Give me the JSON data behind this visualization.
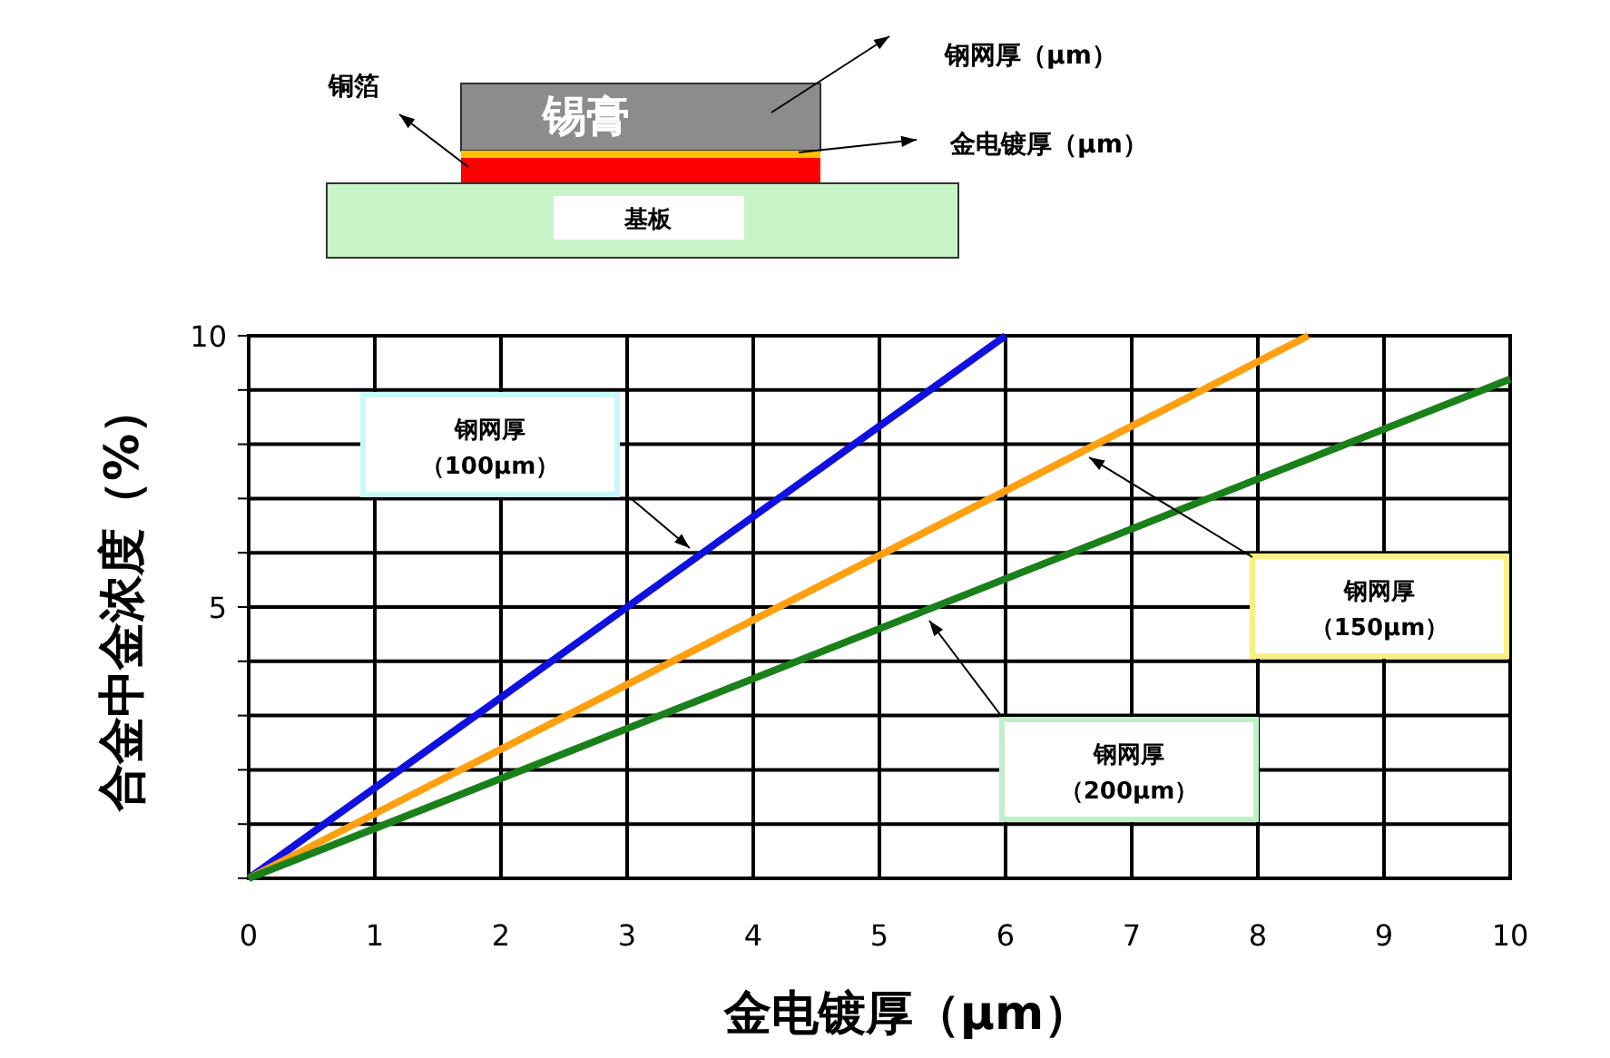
{
  "chart_data": {
    "type": "line",
    "xlabel": "金电镀厚（μm）",
    "ylabel": "合金中金浓度（%）",
    "series": [
      {
        "color": "#1010e0",
        "x": [
          0,
          6
        ],
        "values": [
          0,
          10
        ]
      },
      {
        "color": "#ffa010",
        "x": [
          0,
          8.4
        ],
        "values": [
          0,
          10
        ]
      },
      {
        "color": "#1a801a",
        "x": [
          0,
          10
        ],
        "values": [
          0,
          9.2
        ]
      }
    ],
    "xlim": [
      0,
      10
    ],
    "xticks": [
      0,
      1,
      2,
      3,
      4,
      5,
      6,
      7,
      8,
      9,
      10
    ],
    "ylim": [
      0,
      10
    ],
    "yticks": [
      {
        "value": 0,
        "label": null
      },
      {
        "value": 1,
        "label": null
      },
      {
        "value": 2,
        "label": null
      },
      {
        "value": 3,
        "label": null
      },
      {
        "value": 4,
        "label": null
      },
      5,
      {
        "value": 6,
        "label": null
      },
      {
        "value": 7,
        "label": null
      },
      {
        "value": 8,
        "label": null
      },
      {
        "value": 9,
        "label": null
      },
      10
    ],
    "grid": true,
    "marker": "none",
    "line_style": "solid",
    "annotations": [
      "钢网厚（100μm）",
      "钢网厚（150μm）",
      "钢网厚（200μm）",
      "铜箔",
      "锡膏",
      "钢网厚（μm）",
      "金电镀厚（μm）",
      "基板"
    ]
  }
}
